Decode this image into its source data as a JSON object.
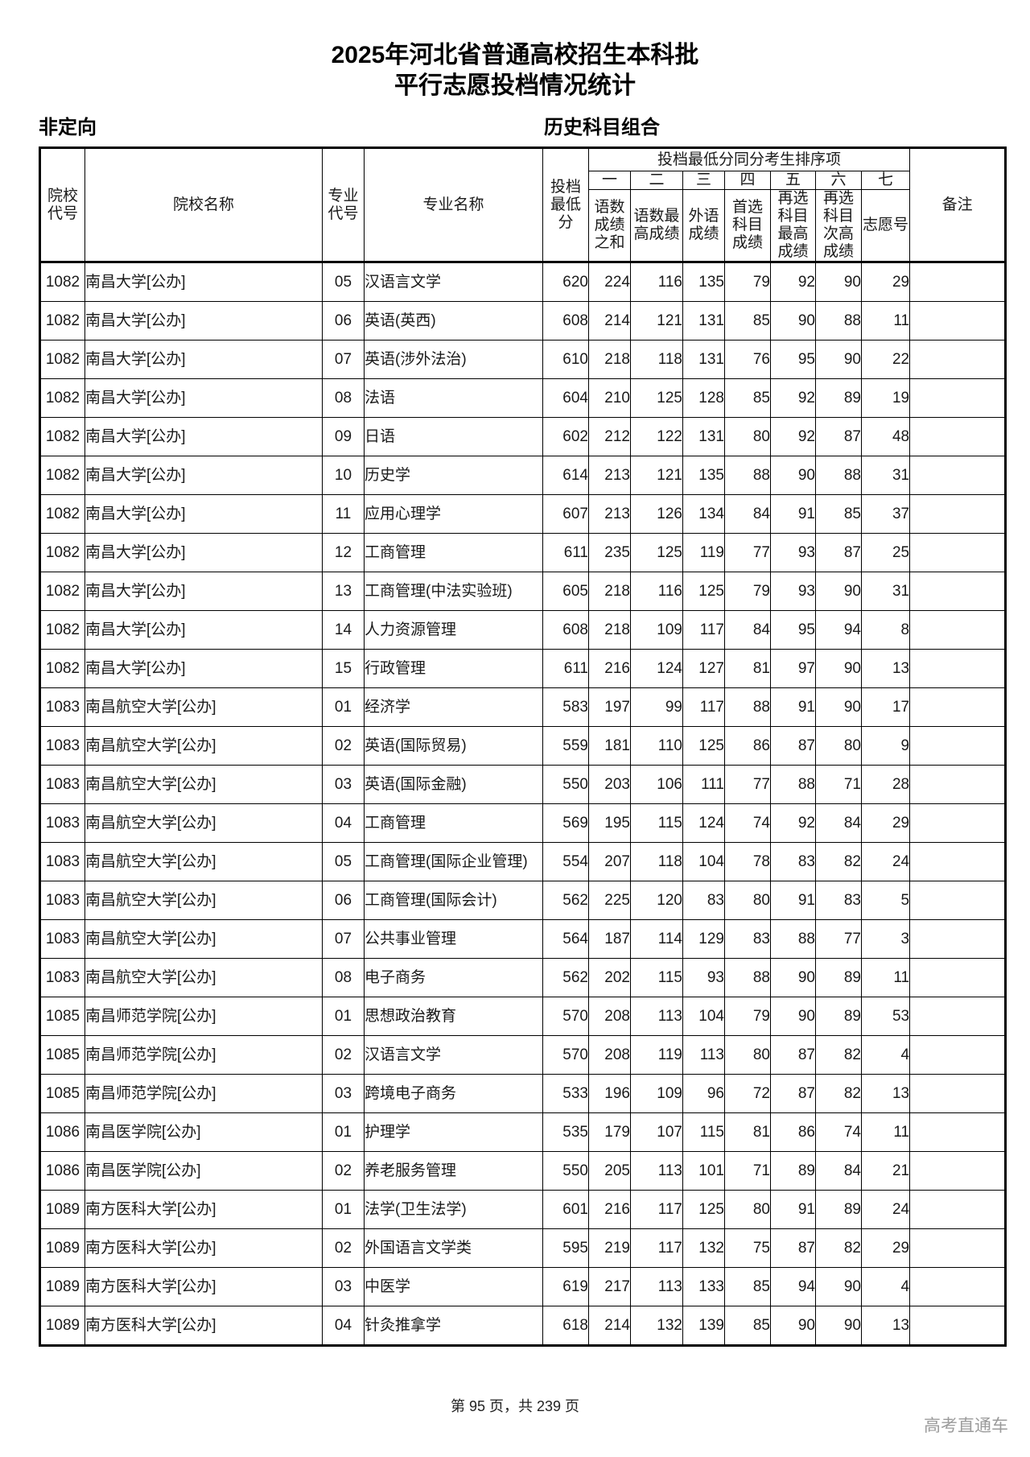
{
  "title": {
    "line1": "2025年河北省普通高校招生本科批",
    "line2": "平行志愿投档情况统计"
  },
  "subheader": {
    "left": "非定向",
    "right": "历史科目组合"
  },
  "table": {
    "headers": {
      "college_code": "院校代号",
      "college_name": "院校名称",
      "major_code": "专业代号",
      "major_name": "专业名称",
      "min_score": "投档最低分",
      "tiebreak_group": "投档最低分同分考生排序项",
      "tiebreak_nums": [
        "一",
        "二",
        "三",
        "四",
        "五",
        "六",
        "七"
      ],
      "tiebreak_labels": [
        "语数成绩之和",
        "语数最高成绩",
        "外语成绩",
        "首选科目成绩",
        "再选科目最高成绩",
        "再选科目次高成绩",
        "志愿号"
      ],
      "remark": "备注"
    },
    "rows": [
      [
        "1082",
        "南昌大学[公办]",
        "05",
        "汉语言文学",
        "620",
        "224",
        "116",
        "135",
        "79",
        "92",
        "90",
        "29",
        ""
      ],
      [
        "1082",
        "南昌大学[公办]",
        "06",
        "英语(英西)",
        "608",
        "214",
        "121",
        "131",
        "85",
        "90",
        "88",
        "11",
        ""
      ],
      [
        "1082",
        "南昌大学[公办]",
        "07",
        "英语(涉外法治)",
        "610",
        "218",
        "118",
        "131",
        "76",
        "95",
        "90",
        "22",
        ""
      ],
      [
        "1082",
        "南昌大学[公办]",
        "08",
        "法语",
        "604",
        "210",
        "125",
        "128",
        "85",
        "92",
        "89",
        "19",
        ""
      ],
      [
        "1082",
        "南昌大学[公办]",
        "09",
        "日语",
        "602",
        "212",
        "122",
        "131",
        "80",
        "92",
        "87",
        "48",
        ""
      ],
      [
        "1082",
        "南昌大学[公办]",
        "10",
        "历史学",
        "614",
        "213",
        "121",
        "135",
        "88",
        "90",
        "88",
        "31",
        ""
      ],
      [
        "1082",
        "南昌大学[公办]",
        "11",
        "应用心理学",
        "607",
        "213",
        "126",
        "134",
        "84",
        "91",
        "85",
        "37",
        ""
      ],
      [
        "1082",
        "南昌大学[公办]",
        "12",
        "工商管理",
        "611",
        "235",
        "125",
        "119",
        "77",
        "93",
        "87",
        "25",
        ""
      ],
      [
        "1082",
        "南昌大学[公办]",
        "13",
        "工商管理(中法实验班)",
        "605",
        "218",
        "116",
        "125",
        "79",
        "93",
        "90",
        "31",
        ""
      ],
      [
        "1082",
        "南昌大学[公办]",
        "14",
        "人力资源管理",
        "608",
        "218",
        "109",
        "117",
        "84",
        "95",
        "94",
        "8",
        ""
      ],
      [
        "1082",
        "南昌大学[公办]",
        "15",
        "行政管理",
        "611",
        "216",
        "124",
        "127",
        "81",
        "97",
        "90",
        "13",
        ""
      ],
      [
        "1083",
        "南昌航空大学[公办]",
        "01",
        "经济学",
        "583",
        "197",
        "99",
        "117",
        "88",
        "91",
        "90",
        "17",
        ""
      ],
      [
        "1083",
        "南昌航空大学[公办]",
        "02",
        "英语(国际贸易)",
        "559",
        "181",
        "110",
        "125",
        "86",
        "87",
        "80",
        "9",
        ""
      ],
      [
        "1083",
        "南昌航空大学[公办]",
        "03",
        "英语(国际金融)",
        "550",
        "203",
        "106",
        "111",
        "77",
        "88",
        "71",
        "28",
        ""
      ],
      [
        "1083",
        "南昌航空大学[公办]",
        "04",
        "工商管理",
        "569",
        "195",
        "115",
        "124",
        "74",
        "92",
        "84",
        "29",
        ""
      ],
      [
        "1083",
        "南昌航空大学[公办]",
        "05",
        "工商管理(国际企业管理)",
        "554",
        "207",
        "118",
        "104",
        "78",
        "83",
        "82",
        "24",
        ""
      ],
      [
        "1083",
        "南昌航空大学[公办]",
        "06",
        "工商管理(国际会计)",
        "562",
        "225",
        "120",
        "83",
        "80",
        "91",
        "83",
        "5",
        ""
      ],
      [
        "1083",
        "南昌航空大学[公办]",
        "07",
        "公共事业管理",
        "564",
        "187",
        "114",
        "129",
        "83",
        "88",
        "77",
        "3",
        ""
      ],
      [
        "1083",
        "南昌航空大学[公办]",
        "08",
        "电子商务",
        "562",
        "202",
        "115",
        "93",
        "88",
        "90",
        "89",
        "11",
        ""
      ],
      [
        "1085",
        "南昌师范学院[公办]",
        "01",
        "思想政治教育",
        "570",
        "208",
        "113",
        "104",
        "79",
        "90",
        "89",
        "53",
        ""
      ],
      [
        "1085",
        "南昌师范学院[公办]",
        "02",
        "汉语言文学",
        "570",
        "208",
        "119",
        "113",
        "80",
        "87",
        "82",
        "4",
        ""
      ],
      [
        "1085",
        "南昌师范学院[公办]",
        "03",
        "跨境电子商务",
        "533",
        "196",
        "109",
        "96",
        "72",
        "87",
        "82",
        "13",
        ""
      ],
      [
        "1086",
        "南昌医学院[公办]",
        "01",
        "护理学",
        "535",
        "179",
        "107",
        "115",
        "81",
        "86",
        "74",
        "11",
        ""
      ],
      [
        "1086",
        "南昌医学院[公办]",
        "02",
        "养老服务管理",
        "550",
        "205",
        "113",
        "101",
        "71",
        "89",
        "84",
        "21",
        ""
      ],
      [
        "1089",
        "南方医科大学[公办]",
        "01",
        "法学(卫生法学)",
        "601",
        "216",
        "117",
        "125",
        "80",
        "91",
        "89",
        "24",
        ""
      ],
      [
        "1089",
        "南方医科大学[公办]",
        "02",
        "外国语言文学类",
        "595",
        "219",
        "117",
        "132",
        "75",
        "87",
        "82",
        "29",
        ""
      ],
      [
        "1089",
        "南方医科大学[公办]",
        "03",
        "中医学",
        "619",
        "217",
        "113",
        "133",
        "85",
        "94",
        "90",
        "4",
        ""
      ],
      [
        "1089",
        "南方医科大学[公办]",
        "04",
        "针灸推拿学",
        "618",
        "214",
        "132",
        "139",
        "85",
        "90",
        "90",
        "13",
        ""
      ]
    ]
  },
  "footer": {
    "page_info": "第 95 页，共 239 页",
    "watermark": "高考直通车"
  }
}
